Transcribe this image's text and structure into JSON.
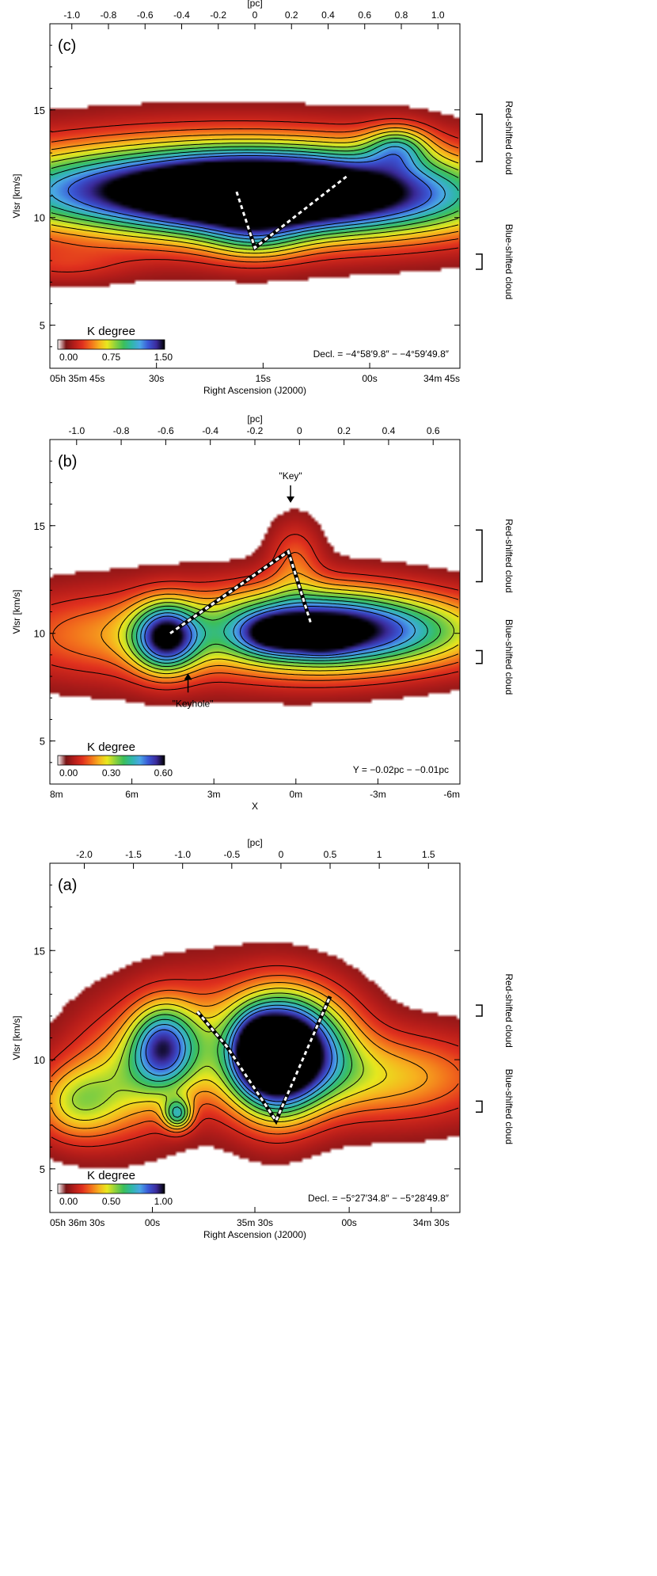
{
  "colors": {
    "colormap": [
      "#ffffff",
      "#7a1416",
      "#b51d1a",
      "#e0301e",
      "#f26d1c",
      "#f7b11e",
      "#e8e81e",
      "#8ed13c",
      "#3cbf5a",
      "#2fb7a9",
      "#4aa6e6",
      "#3a57d6",
      "#3b2a9a",
      "#000000"
    ],
    "contour": "#000000",
    "ridge": "#ffffff",
    "frame": "#000000"
  },
  "chart_data": [
    {
      "panel_label": "(c)",
      "type": "heatmap",
      "top_axis_label": "[pc]",
      "top_ticks": [
        "-1.0",
        "-0.8",
        "-0.6",
        "-0.4",
        "-0.2",
        "0",
        "0.2",
        "0.4",
        "0.6",
        "0.8",
        "1.0"
      ],
      "top_range": [
        -1.12,
        1.12
      ],
      "ylabel": "Vlsr [km/s]",
      "y_ticks": [
        "5",
        "10",
        "15"
      ],
      "ylim": [
        3,
        19
      ],
      "x_ticks": [
        "05h 35m 45s",
        "30s",
        "15s",
        "00s",
        "34m 45s"
      ],
      "x_tick_fracs": [
        0.0,
        0.26,
        0.52,
        0.78,
        1.0
      ],
      "xlabel": "Right Ascension (J2000)",
      "colorbar_label": "K degree",
      "colorbar_ticks": [
        "0.00",
        "0.75",
        "1.50"
      ],
      "colorbar_range": [
        0,
        1.5
      ],
      "annotation": "Decl. = −4°58′9.8″ − −4°59′49.8″",
      "clouds": [
        {
          "label": "Red-shifted cloud",
          "vrange": [
            12.6,
            14.8
          ]
        },
        {
          "label": "Blue-shifted cloud",
          "vrange": [
            7.6,
            8.3
          ]
        }
      ],
      "emission_blobs": [
        {
          "x": -0.25,
          "v": 11.3,
          "sx": 0.85,
          "sv": 1.6,
          "amp": 1.25,
          "rot": 10
        },
        {
          "x": 0.35,
          "v": 11.2,
          "sx": 0.55,
          "sv": 1.3,
          "amp": 0.8,
          "rot": 0
        },
        {
          "x": -0.1,
          "v": 11.0,
          "sx": 0.35,
          "sv": 1.2,
          "amp": 0.55,
          "rot": 0
        },
        {
          "x": 0.78,
          "v": 13.3,
          "sx": 0.12,
          "sv": 0.7,
          "amp": 0.6,
          "rot": 0
        },
        {
          "x": -0.9,
          "v": 11.2,
          "sx": 0.55,
          "sv": 1.1,
          "amp": 0.35,
          "rot": 0
        },
        {
          "x": 0.95,
          "v": 10.8,
          "sx": 0.5,
          "sv": 1.3,
          "amp": 0.35,
          "rot": 0
        },
        {
          "x": 0.0,
          "v": 9.0,
          "sx": 0.18,
          "sv": 0.8,
          "amp": 0.35,
          "rot": 0
        },
        {
          "x": -1.05,
          "v": 7.8,
          "sx": 0.25,
          "sv": 0.6,
          "amp": 0.18,
          "rot": 0
        }
      ],
      "ridge_line": [
        [
          -0.1,
          11.2
        ],
        [
          0.0,
          8.6
        ],
        [
          0.5,
          11.9
        ]
      ]
    },
    {
      "panel_label": "(b)",
      "type": "heatmap",
      "top_axis_label": "[pc]",
      "top_ticks": [
        "-1.0",
        "-0.8",
        "-0.6",
        "-0.4",
        "-0.2",
        "0",
        "0.2",
        "0.4",
        "0.6"
      ],
      "top_range": [
        -1.12,
        0.72
      ],
      "ylabel": "Vlsr [km/s]",
      "y_ticks": [
        "5",
        "10",
        "15"
      ],
      "ylim": [
        3,
        19
      ],
      "x_ticks": [
        "8m",
        "6m",
        "3m",
        "0m",
        "-3m",
        "-6m"
      ],
      "x_tick_fracs": [
        0.0,
        0.2,
        0.4,
        0.6,
        0.8,
        1.0
      ],
      "xlabel": "X",
      "colorbar_label": "K degree",
      "colorbar_ticks": [
        "0.00",
        "0.30",
        "0.60"
      ],
      "colorbar_range": [
        0,
        0.6
      ],
      "annotation": "Y = −0.02pc − −0.01pc",
      "callouts": [
        {
          "label": "\"Key\"",
          "x": -0.04,
          "v": 16.8
        },
        {
          "label": "\"Keyhole\"",
          "x": -0.5,
          "v": 7.4
        }
      ],
      "clouds": [
        {
          "label": "Red-shifted cloud",
          "vrange": [
            12.4,
            14.8
          ]
        },
        {
          "label": "Blue-shifted cloud",
          "vrange": [
            8.6,
            9.2
          ]
        }
      ],
      "emission_blobs": [
        {
          "x": 0.05,
          "v": 10.2,
          "sx": 0.3,
          "sv": 1.3,
          "amp": 0.45,
          "rot": 0
        },
        {
          "x": 0.45,
          "v": 10.1,
          "sx": 0.35,
          "sv": 1.2,
          "amp": 0.3,
          "rot": 0
        },
        {
          "x": -0.12,
          "v": 10.0,
          "sx": 0.1,
          "sv": 0.6,
          "amp": 0.2,
          "rot": 0
        },
        {
          "x": 0.1,
          "v": 9.8,
          "sx": 0.08,
          "sv": 0.5,
          "amp": 0.15,
          "rot": 0
        },
        {
          "x": -0.6,
          "v": 9.8,
          "sx": 0.1,
          "sv": 1.1,
          "amp": 0.45,
          "rot": 0
        },
        {
          "x": -0.45,
          "v": 10.0,
          "sx": 0.45,
          "sv": 1.5,
          "amp": 0.12,
          "rot": 0
        },
        {
          "x": -0.95,
          "v": 9.9,
          "sx": 0.35,
          "sv": 1.4,
          "amp": 0.1,
          "rot": 0
        },
        {
          "x": -0.02,
          "v": 13.5,
          "sx": 0.08,
          "sv": 1.2,
          "amp": 0.12,
          "rot": 0
        }
      ],
      "ridge_line": [
        [
          -0.58,
          10.0
        ],
        [
          -0.05,
          13.8
        ],
        [
          0.05,
          10.5
        ]
      ]
    },
    {
      "panel_label": "(a)",
      "type": "heatmap",
      "top_axis_label": "[pc]",
      "top_ticks": [
        "-2.0",
        "-1.5",
        "-1.0",
        "-0.5",
        "0",
        "0.5",
        "1",
        "1.5"
      ],
      "top_range": [
        -2.35,
        1.82
      ],
      "ylabel": "Vlsr [km/s]",
      "y_ticks": [
        "5",
        "10",
        "15"
      ],
      "ylim": [
        3,
        19
      ],
      "x_ticks": [
        "05h 36m 30s",
        "00s",
        "35m 30s",
        "00s",
        "34m 30s"
      ],
      "x_tick_fracs": [
        0.0,
        0.25,
        0.5,
        0.73,
        0.93
      ],
      "xlabel": "Right Ascension (J2000)",
      "colorbar_label": "K degree",
      "colorbar_ticks": [
        "0.00",
        "0.50",
        "1.00"
      ],
      "colorbar_range": [
        0,
        1.0
      ],
      "annotation": "Decl. = −5°27′34.8″ − −5°28′49.8″",
      "clouds": [
        {
          "label": "Red-shifted cloud",
          "vrange": [
            12.0,
            12.5
          ]
        },
        {
          "label": "Blue-shifted cloud",
          "vrange": [
            7.6,
            8.1
          ]
        }
      ],
      "emission_blobs": [
        {
          "x": -0.05,
          "v": 10.0,
          "sx": 0.3,
          "sv": 1.8,
          "amp": 0.95,
          "rot": 0
        },
        {
          "x": -0.25,
          "v": 10.5,
          "sx": 0.15,
          "sv": 1.0,
          "amp": 0.4,
          "rot": 0
        },
        {
          "x": -1.2,
          "v": 10.6,
          "sx": 0.22,
          "sv": 1.3,
          "amp": 0.6,
          "rot": 0
        },
        {
          "x": -1.05,
          "v": 7.5,
          "sx": 0.1,
          "sv": 0.5,
          "amp": 0.5,
          "rot": 0
        },
        {
          "x": 0.3,
          "v": 10.8,
          "sx": 0.35,
          "sv": 1.6,
          "amp": 0.45,
          "rot": 0
        },
        {
          "x": -0.6,
          "v": 10.8,
          "sx": 0.7,
          "sv": 2.0,
          "amp": 0.35,
          "rot": 0
        },
        {
          "x": 1.05,
          "v": 9.2,
          "sx": 0.8,
          "sv": 1.4,
          "amp": 0.35,
          "rot": 0
        },
        {
          "x": -2.1,
          "v": 8.0,
          "sx": 0.3,
          "sv": 1.2,
          "amp": 0.35,
          "rot": 0
        },
        {
          "x": -1.6,
          "v": 9.0,
          "sx": 0.4,
          "sv": 1.8,
          "amp": 0.3,
          "rot": 0
        }
      ],
      "ridge_line": [
        [
          -0.85,
          12.2
        ],
        [
          -0.55,
          10.6
        ],
        [
          -0.05,
          7.2
        ],
        [
          0.5,
          12.9
        ]
      ]
    }
  ]
}
